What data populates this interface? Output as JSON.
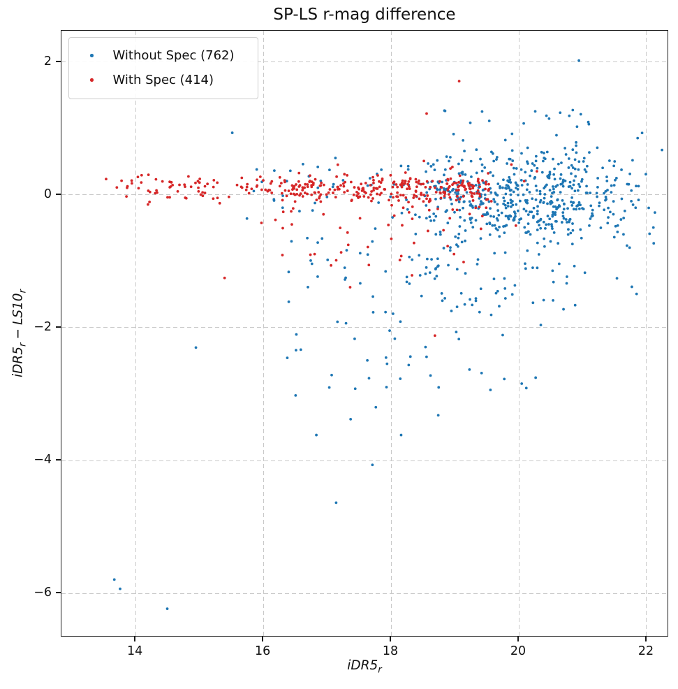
{
  "figure": {
    "background": "#ffffff"
  },
  "chart_data": {
    "type": "scatter",
    "title": "SP-LS r-mag difference",
    "xlabel": "iDR5_r",
    "ylabel": "iDR5_r - LS10_r",
    "xlabel_parts": {
      "main": "iDR5",
      "sub": "r"
    },
    "ylabel_parts": {
      "p1": "iDR5",
      "s1": "r",
      "minus": "−",
      "p2": "LS10",
      "s2": "r"
    },
    "xlim": [
      12.84,
      22.35
    ],
    "ylim": [
      -6.66,
      2.47
    ],
    "xticks": [
      14,
      16,
      18,
      20,
      22
    ],
    "xtick_labels": [
      "14",
      "16",
      "18",
      "20",
      "22"
    ],
    "yticks": [
      2,
      0,
      -2,
      -4,
      -6
    ],
    "ytick_labels": [
      "2",
      "0",
      "−2",
      "−4",
      "−6"
    ],
    "grid": {
      "show": true,
      "style": "dashed",
      "color": "#c9c9c9"
    },
    "legend_position": "upper-left",
    "marker_radius_px": 1.9,
    "seed": 1337,
    "series": [
      {
        "name": "Without Spec (762)",
        "count": 762,
        "color": "#1f77b4",
        "clusters": [
          {
            "n": 500,
            "x": {
              "dist": "normal",
              "mu": 20.05,
              "sigma": 1.0,
              "min": 17.3,
              "max": 22.3
            },
            "y": {
              "dist": "normal",
              "mu": -0.02,
              "sigma": 0.3,
              "min": -0.85,
              "max": 0.95
            }
          },
          {
            "n": 40,
            "x": {
              "dist": "normal",
              "mu": 20.6,
              "sigma": 0.8,
              "min": 18.8,
              "max": 22.2
            },
            "y": {
              "dist": "power",
              "min": 0.5,
              "max": 1.35,
              "exp": 1.6
            }
          },
          {
            "n": 110,
            "x": {
              "dist": "normal",
              "mu": 19.9,
              "sigma": 1.0,
              "min": 17.6,
              "max": 22.2
            },
            "y": {
              "dist": "power",
              "min": -1.9,
              "max": -0.3,
              "exp": 0.55
            }
          },
          {
            "n": 34,
            "x": {
              "dist": "normal",
              "mu": 18.9,
              "sigma": 0.85,
              "min": 17.0,
              "max": 21.2
            },
            "y": {
              "dist": "power",
              "min": -3.35,
              "max": -1.5,
              "exp": 0.6
            }
          },
          {
            "n": 40,
            "x": {
              "dist": "uniform",
              "min": 16.35,
              "max": 18.85
            },
            "y": {
              "dist": "power",
              "min": -3.7,
              "max": -0.6,
              "exp": 0.6
            }
          },
          {
            "n": 25,
            "x": {
              "dist": "power",
              "min": 15.55,
              "max": 17.5,
              "exp": 0.8
            },
            "y": {
              "dist": "normal",
              "mu": 0.1,
              "sigma": 0.25,
              "min": -0.45,
              "max": 0.75
            }
          }
        ],
        "points": [
          [
            15.52,
            0.93
          ],
          [
            14.95,
            -2.31
          ],
          [
            13.67,
            -5.81
          ],
          [
            13.76,
            -5.95
          ],
          [
            14.5,
            -6.25
          ],
          [
            20.96,
            2.02
          ],
          [
            18.86,
            1.26
          ],
          [
            17.15,
            -4.65
          ],
          [
            17.72,
            -4.08
          ],
          [
            18.17,
            -3.63
          ],
          [
            16.84,
            -3.63
          ],
          [
            16.52,
            -2.35
          ],
          [
            17.45,
            -2.93
          ]
        ]
      },
      {
        "name": "With Spec (414)",
        "count": 414,
        "color": "#d62728",
        "clusters": [
          {
            "n": 300,
            "x": {
              "dist": "power",
              "min": 13.25,
              "max": 19.55,
              "exp": 0.6
            },
            "y": {
              "dist": "normal",
              "mu": 0.09,
              "sigma": 0.1,
              "min": -0.18,
              "max": 0.42
            }
          },
          {
            "n": 80,
            "x": {
              "dist": "power",
              "min": 15.8,
              "max": 19.6,
              "exp": 0.75
            },
            "y": {
              "dist": "normal",
              "mu": 0.0,
              "sigma": 0.22,
              "min": -0.55,
              "max": 0.75
            }
          },
          {
            "n": 18,
            "x": {
              "dist": "uniform",
              "min": 16.3,
              "max": 19.7
            },
            "y": {
              "dist": "power",
              "min": -1.45,
              "max": -0.35,
              "exp": 0.6
            }
          }
        ],
        "points": [
          [
            15.4,
            -1.26
          ],
          [
            17.07,
            -1.07
          ],
          [
            17.34,
            -0.76
          ],
          [
            17.37,
            -1.4
          ],
          [
            18.15,
            -0.99
          ],
          [
            18.34,
            -1.22
          ],
          [
            18.7,
            -2.13
          ],
          [
            18.9,
            -0.78
          ],
          [
            19.0,
            -0.9
          ],
          [
            19.15,
            -1.02
          ],
          [
            18.57,
            1.22
          ],
          [
            19.08,
            1.71
          ],
          [
            19.9,
            0.45
          ],
          [
            20.1,
            0.2
          ],
          [
            20.3,
            0.35
          ],
          [
            19.97,
            -0.47
          ]
        ]
      }
    ]
  }
}
